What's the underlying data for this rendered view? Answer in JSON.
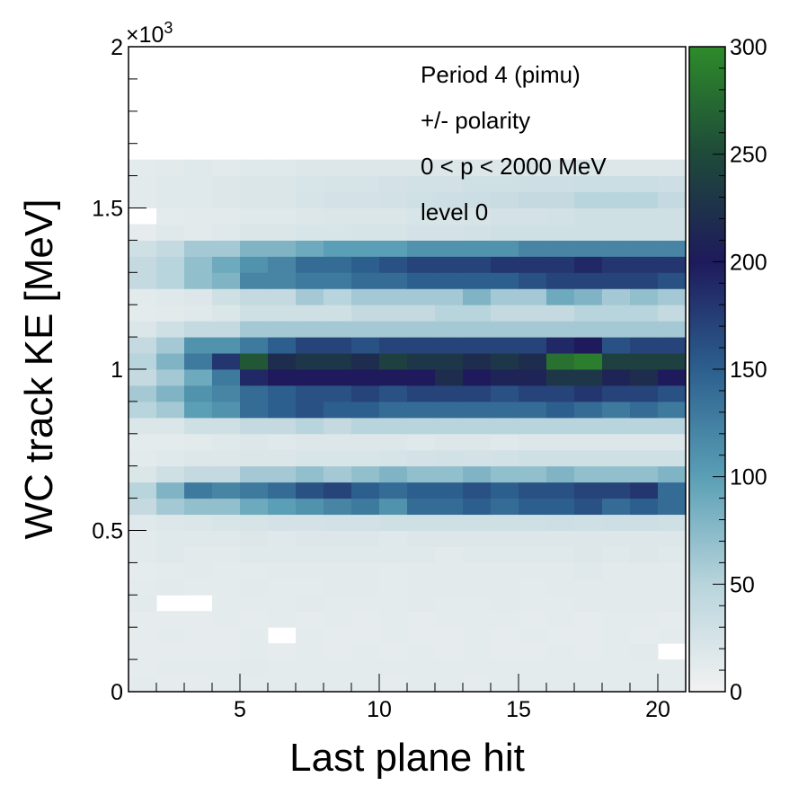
{
  "chart_data": {
    "type": "heatmap",
    "xlabel": "Last plane hit",
    "ylabel": "WC track KE [MeV]",
    "y_multiplier_base": "×10",
    "y_multiplier_exp": "3",
    "xlim": [
      1,
      21
    ],
    "ylim": [
      0,
      2
    ],
    "zlim": [
      0,
      300
    ],
    "x_ticks": [
      5,
      10,
      15,
      20
    ],
    "x_tick_labels": [
      "5",
      "10",
      "15",
      "20"
    ],
    "y_ticks": [
      0,
      0.5,
      1,
      1.5,
      2
    ],
    "y_tick_labels": [
      "0",
      "0.5",
      "1",
      "1.5",
      "2"
    ],
    "z_ticks": [
      0,
      50,
      100,
      150,
      200,
      250,
      300
    ],
    "z_tick_labels": [
      "0",
      "50",
      "100",
      "150",
      "200",
      "250",
      "300"
    ],
    "annotations": [
      "Period 4 (pimu)",
      "+/- polarity",
      "0 < p < 2000 MeV",
      "level 0"
    ],
    "colorscale": [
      "#f2f2f2",
      "#b8d4dc",
      "#5a9fb5",
      "#2c5f8e",
      "#1e1a5c",
      "#1e4a3a",
      "#2e8b2a"
    ],
    "x_bins": [
      1,
      2,
      3,
      4,
      5,
      6,
      7,
      8,
      9,
      10,
      11,
      12,
      13,
      14,
      15,
      16,
      17,
      18,
      19,
      20
    ],
    "y_bin_width": 0.05,
    "y_bin_start": 0.0,
    "z": [
      [
        12,
        10,
        10,
        12,
        12,
        12,
        12,
        12,
        12,
        10,
        12,
        12,
        10,
        12,
        12,
        12,
        12,
        12,
        12,
        12
      ],
      [
        10,
        12,
        12,
        12,
        14,
        12,
        12,
        12,
        12,
        12,
        12,
        12,
        12,
        12,
        12,
        12,
        12,
        12,
        12,
        12
      ],
      [
        10,
        10,
        10,
        10,
        12,
        10,
        12,
        10,
        12,
        10,
        12,
        10,
        12,
        10,
        10,
        12,
        10,
        12,
        14,
        0
      ],
      [
        10,
        12,
        10,
        10,
        12,
        0,
        12,
        10,
        10,
        12,
        10,
        10,
        12,
        10,
        12,
        10,
        10,
        12,
        10,
        12
      ],
      [
        10,
        10,
        10,
        12,
        10,
        12,
        10,
        12,
        10,
        12,
        10,
        12,
        12,
        12,
        10,
        12,
        10,
        12,
        12,
        10
      ],
      [
        14,
        0,
        0,
        12,
        12,
        12,
        14,
        12,
        12,
        12,
        14,
        12,
        12,
        14,
        12,
        12,
        14,
        14,
        14,
        14
      ],
      [
        12,
        14,
        12,
        12,
        14,
        12,
        12,
        14,
        14,
        12,
        14,
        14,
        14,
        14,
        12,
        14,
        14,
        14,
        14,
        14
      ],
      [
        10,
        12,
        14,
        12,
        12,
        14,
        14,
        14,
        14,
        12,
        14,
        14,
        14,
        14,
        14,
        14,
        16,
        14,
        14,
        14
      ],
      [
        14,
        16,
        14,
        14,
        16,
        16,
        16,
        16,
        16,
        16,
        16,
        14,
        16,
        16,
        16,
        16,
        18,
        16,
        18,
        16
      ],
      [
        14,
        16,
        16,
        16,
        18,
        16,
        18,
        18,
        18,
        16,
        18,
        18,
        18,
        18,
        18,
        18,
        18,
        18,
        18,
        18
      ],
      [
        16,
        18,
        20,
        22,
        24,
        26,
        26,
        28,
        28,
        30,
        30,
        30,
        30,
        30,
        30,
        32,
        30,
        32,
        32,
        30
      ],
      [
        40,
        60,
        70,
        70,
        90,
        100,
        110,
        120,
        130,
        110,
        140,
        140,
        150,
        140,
        150,
        150,
        160,
        140,
        150,
        140
      ],
      [
        50,
        80,
        130,
        120,
        130,
        140,
        160,
        170,
        150,
        140,
        150,
        150,
        160,
        150,
        160,
        160,
        170,
        170,
        180,
        140
      ],
      [
        20,
        30,
        40,
        40,
        60,
        60,
        70,
        60,
        70,
        80,
        70,
        70,
        80,
        70,
        70,
        80,
        70,
        70,
        70,
        80
      ],
      [
        14,
        16,
        18,
        18,
        20,
        20,
        22,
        22,
        22,
        24,
        26,
        28,
        26,
        28,
        30,
        30,
        30,
        30,
        30,
        30
      ],
      [
        12,
        12,
        14,
        16,
        18,
        16,
        18,
        18,
        18,
        18,
        16,
        18,
        18,
        16,
        18,
        18,
        18,
        18,
        18,
        18
      ],
      [
        20,
        20,
        30,
        30,
        40,
        40,
        50,
        40,
        50,
        50,
        50,
        50,
        50,
        50,
        50,
        50,
        50,
        50,
        50,
        50
      ],
      [
        50,
        60,
        100,
        110,
        140,
        150,
        160,
        150,
        150,
        140,
        140,
        140,
        140,
        140,
        140,
        150,
        140,
        130,
        140,
        130
      ],
      [
        60,
        80,
        110,
        120,
        140,
        150,
        160,
        160,
        170,
        160,
        170,
        170,
        170,
        160,
        170,
        170,
        180,
        170,
        170,
        160
      ],
      [
        40,
        60,
        90,
        130,
        190,
        200,
        200,
        200,
        200,
        200,
        200,
        220,
        200,
        210,
        210,
        230,
        230,
        210,
        220,
        200
      ],
      [
        50,
        80,
        130,
        180,
        260,
        220,
        230,
        230,
        220,
        240,
        230,
        230,
        220,
        230,
        220,
        280,
        290,
        240,
        240,
        240
      ],
      [
        40,
        60,
        110,
        110,
        130,
        150,
        170,
        170,
        160,
        170,
        170,
        170,
        170,
        170,
        170,
        190,
        200,
        160,
        170,
        170
      ],
      [
        20,
        30,
        40,
        40,
        60,
        60,
        60,
        60,
        60,
        60,
        60,
        60,
        60,
        60,
        60,
        60,
        60,
        60,
        60,
        60
      ],
      [
        12,
        14,
        16,
        20,
        30,
        30,
        30,
        30,
        40,
        40,
        40,
        50,
        50,
        40,
        40,
        40,
        50,
        50,
        50,
        40
      ],
      [
        14,
        16,
        18,
        30,
        40,
        40,
        60,
        50,
        60,
        60,
        60,
        60,
        80,
        60,
        60,
        90,
        80,
        60,
        70,
        60
      ],
      [
        40,
        50,
        70,
        80,
        120,
        120,
        130,
        130,
        140,
        140,
        150,
        150,
        150,
        150,
        160,
        170,
        170,
        170,
        170,
        160
      ],
      [
        40,
        50,
        70,
        90,
        110,
        120,
        140,
        140,
        150,
        160,
        170,
        170,
        170,
        180,
        180,
        180,
        190,
        180,
        180,
        180
      ],
      [
        30,
        40,
        60,
        60,
        80,
        80,
        90,
        100,
        100,
        100,
        110,
        110,
        110,
        110,
        120,
        120,
        120,
        120,
        120,
        120
      ],
      [
        10,
        16,
        14,
        16,
        20,
        20,
        22,
        22,
        24,
        24,
        26,
        26,
        28,
        30,
        30,
        30,
        30,
        30,
        30,
        30
      ],
      [
        0,
        12,
        14,
        14,
        16,
        16,
        18,
        20,
        20,
        20,
        22,
        22,
        24,
        26,
        26,
        28,
        30,
        30,
        30,
        30
      ],
      [
        14,
        16,
        16,
        18,
        20,
        20,
        24,
        26,
        26,
        28,
        30,
        32,
        34,
        36,
        40,
        40,
        50,
        50,
        50,
        40
      ],
      [
        14,
        16,
        16,
        18,
        20,
        20,
        22,
        24,
        24,
        26,
        28,
        28,
        30,
        30,
        32,
        32,
        34,
        34,
        34,
        32
      ],
      [
        12,
        14,
        16,
        14,
        16,
        16,
        18,
        18,
        18,
        18,
        18,
        18,
        18,
        18,
        18,
        18,
        20,
        18,
        18,
        18
      ]
    ]
  }
}
